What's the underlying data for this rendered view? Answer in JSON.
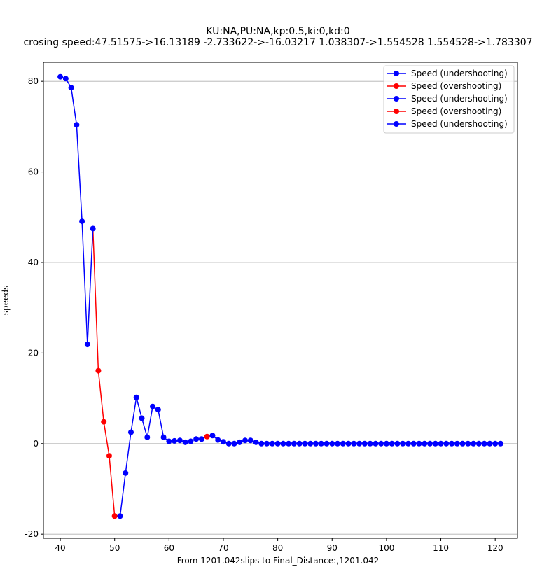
{
  "chart_data": {
    "type": "line",
    "title_line1": "KU:NA,PU:NA,kp:0.5,ki:0,kd:0",
    "title_line2": "crosing speed:47.51575->16.13189 -2.733622->-16.03217 1.038307->1.554528 1.554528->1.783307",
    "xlabel": "From 1201.042slips to Final_Distance:,1201.042",
    "ylabel": "speeds",
    "xlim": [
      36.9,
      124.1
    ],
    "ylim": [
      -20.9,
      84.2
    ],
    "xticks": [
      40,
      50,
      60,
      70,
      80,
      90,
      100,
      110,
      120
    ],
    "yticks": [
      -20,
      0,
      20,
      40,
      60,
      80
    ],
    "grid": "horizontal",
    "legend_position": "top-right",
    "colors": {
      "undershooting": "#0000ff",
      "overshooting": "#ff0000"
    },
    "series": [
      {
        "name": "Speed (undershooting)",
        "color": "#0000ff",
        "x": [
          40,
          41,
          42,
          43,
          44,
          45,
          46
        ],
        "y": [
          81.0,
          80.6,
          78.6,
          70.4,
          49.1,
          21.9,
          47.5
        ]
      },
      {
        "name": "Speed (overshooting)",
        "color": "#ff0000",
        "x": [
          47,
          48,
          49,
          50
        ],
        "y": [
          16.1,
          4.8,
          -2.7,
          -16.0
        ]
      },
      {
        "name": "Speed (undershooting)",
        "color": "#0000ff",
        "x": [
          51,
          52,
          53,
          54,
          55,
          56,
          57,
          58,
          59,
          60,
          61,
          62,
          63,
          64,
          65,
          66
        ],
        "y": [
          -16.0,
          -6.5,
          2.5,
          10.2,
          5.6,
          1.4,
          8.2,
          7.5,
          1.4,
          0.5,
          0.6,
          0.7,
          0.3,
          0.5,
          1.0,
          1.0
        ]
      },
      {
        "name": "Speed (overshooting)",
        "color": "#ff0000",
        "x": [
          67
        ],
        "y": [
          1.55
        ]
      },
      {
        "name": "Speed (undershooting)",
        "color": "#0000ff",
        "x": [
          68,
          69,
          70,
          71,
          72,
          73,
          74,
          75,
          76,
          77,
          78,
          79,
          80,
          81,
          82,
          83,
          84,
          85,
          86,
          87,
          88,
          89,
          90,
          91,
          92,
          93,
          94,
          95,
          96,
          97,
          98,
          99,
          100,
          101,
          102,
          103,
          104,
          105,
          106,
          107,
          108,
          109,
          110,
          111,
          112,
          113,
          114,
          115,
          116,
          117,
          118,
          119,
          120,
          121
        ],
        "y": [
          1.78,
          0.8,
          0.4,
          0.0,
          0.0,
          0.3,
          0.7,
          0.7,
          0.3,
          0.0,
          0.0,
          0.0,
          0.0,
          0.0,
          0.0,
          0.0,
          0.0,
          0.0,
          0.0,
          0.0,
          0.0,
          0.0,
          0.0,
          0.0,
          0.0,
          0.0,
          0.0,
          0.0,
          0.0,
          0.0,
          0.0,
          0.0,
          0.0,
          0.0,
          0.0,
          0.0,
          0.0,
          0.0,
          0.0,
          0.0,
          0.0,
          0.0,
          0.0,
          0.0,
          0.0,
          0.0,
          0.0,
          0.0,
          0.0,
          0.0,
          0.0,
          0.0,
          0.0,
          0.0
        ]
      }
    ]
  }
}
